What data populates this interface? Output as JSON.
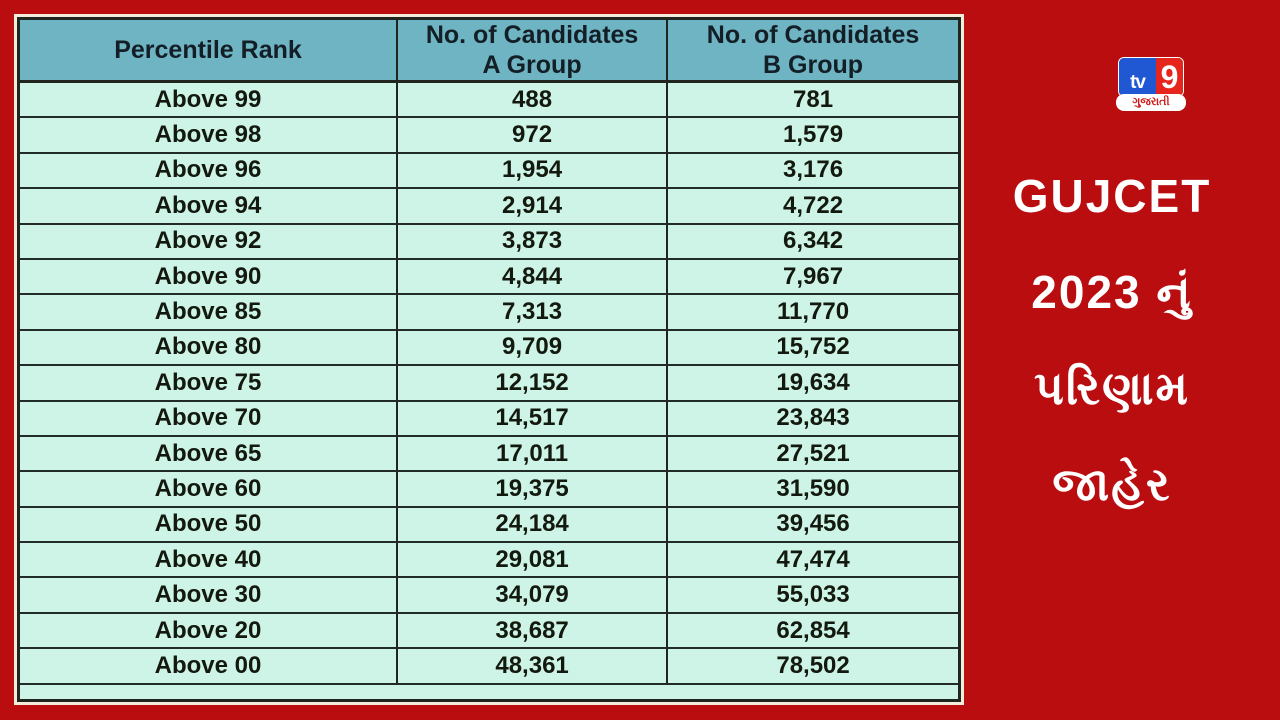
{
  "colors": {
    "background_red": "#b90d10",
    "header_teal": "#6fb4c2",
    "row_mint": "#cdf4e6",
    "border_dark": "#20261f",
    "panel_cream": "#f3ecda",
    "logo_blue": "#2057d2",
    "logo_red": "#e6261d",
    "headline_white": "#ffffff"
  },
  "table": {
    "header": {
      "col1": "Percentile Rank",
      "col2_line1": "No. of Candidates",
      "col2_line2": "A Group",
      "col3_line1": "No. of Candidates",
      "col3_line2": "B Group"
    },
    "rows": [
      {
        "rank": "Above 99",
        "a_group": "488",
        "b_group": "781"
      },
      {
        "rank": "Above 98",
        "a_group": "972",
        "b_group": "1,579"
      },
      {
        "rank": "Above 96",
        "a_group": "1,954",
        "b_group": "3,176"
      },
      {
        "rank": "Above 94",
        "a_group": "2,914",
        "b_group": "4,722"
      },
      {
        "rank": "Above 92",
        "a_group": "3,873",
        "b_group": "6,342"
      },
      {
        "rank": "Above 90",
        "a_group": "4,844",
        "b_group": "7,967"
      },
      {
        "rank": "Above 85",
        "a_group": "7,313",
        "b_group": "11,770"
      },
      {
        "rank": "Above 80",
        "a_group": "9,709",
        "b_group": "15,752"
      },
      {
        "rank": "Above 75",
        "a_group": "12,152",
        "b_group": "19,634"
      },
      {
        "rank": "Above 70",
        "a_group": "14,517",
        "b_group": "23,843"
      },
      {
        "rank": "Above 65",
        "a_group": "17,011",
        "b_group": "27,521"
      },
      {
        "rank": "Above 60",
        "a_group": "19,375",
        "b_group": "31,590"
      },
      {
        "rank": "Above 50",
        "a_group": "24,184",
        "b_group": "39,456"
      },
      {
        "rank": "Above 40",
        "a_group": "29,081",
        "b_group": "47,474"
      },
      {
        "rank": "Above 30",
        "a_group": "34,079",
        "b_group": "55,033"
      },
      {
        "rank": "Above 20",
        "a_group": "38,687",
        "b_group": "62,854"
      },
      {
        "rank": "Above 00",
        "a_group": "48,361",
        "b_group": "78,502"
      }
    ]
  },
  "sidebar": {
    "logo": {
      "tv": "tv",
      "nine": "9",
      "banner": "ગુજરાતી"
    },
    "headline_lines": [
      "GUJCET",
      "2023 નું",
      "પરિણામ",
      "જાહેર"
    ]
  },
  "chart_data": {
    "type": "table",
    "title": "GUJCET 2023 Percentile Rank vs Number of Candidates",
    "columns": [
      "Percentile Rank",
      "No. of Candidates A Group",
      "No. of Candidates B Group"
    ],
    "rows": [
      [
        "Above 99",
        488,
        781
      ],
      [
        "Above 98",
        972,
        1579
      ],
      [
        "Above 96",
        1954,
        3176
      ],
      [
        "Above 94",
        2914,
        4722
      ],
      [
        "Above 92",
        3873,
        6342
      ],
      [
        "Above 90",
        4844,
        7967
      ],
      [
        "Above 85",
        7313,
        11770
      ],
      [
        "Above 80",
        9709,
        15752
      ],
      [
        "Above 75",
        12152,
        19634
      ],
      [
        "Above 70",
        14517,
        23843
      ],
      [
        "Above 65",
        17011,
        27521
      ],
      [
        "Above 60",
        19375,
        31590
      ],
      [
        "Above 50",
        24184,
        39456
      ],
      [
        "Above 40",
        29081,
        47474
      ],
      [
        "Above 30",
        34079,
        55033
      ],
      [
        "Above 20",
        38687,
        62854
      ],
      [
        "Above 00",
        48361,
        78502
      ]
    ]
  }
}
